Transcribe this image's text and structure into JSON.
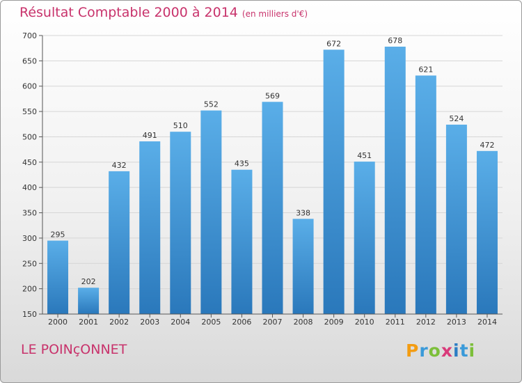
{
  "header": {
    "title": "Résultat Comptable 2000 à 2014",
    "subtitle": "(en milliers d'€)"
  },
  "footer": {
    "commune": "LE POINçONNET",
    "logo": "Proxiti"
  },
  "colors": {
    "title": "#c8326b",
    "bar_top": "#5aaee8",
    "bar_bottom": "#2a78bb",
    "grid": "#d6d6d6",
    "axis": "#555555"
  },
  "chart_data": {
    "type": "bar",
    "title": "Résultat Comptable 2000 à 2014",
    "subtitle": "(en milliers d'€)",
    "xlabel": "",
    "ylabel": "",
    "categories": [
      "2000",
      "2001",
      "2002",
      "2003",
      "2004",
      "2005",
      "2006",
      "2007",
      "2008",
      "2009",
      "2010",
      "2011",
      "2012",
      "2013",
      "2014"
    ],
    "values": [
      295,
      202,
      432,
      491,
      510,
      552,
      435,
      569,
      338,
      672,
      451,
      678,
      621,
      524,
      472
    ],
    "ylim": [
      150,
      700
    ],
    "yticks": [
      150,
      200,
      250,
      300,
      350,
      400,
      450,
      500,
      550,
      600,
      650,
      700
    ],
    "grid": true,
    "legend": "none"
  }
}
